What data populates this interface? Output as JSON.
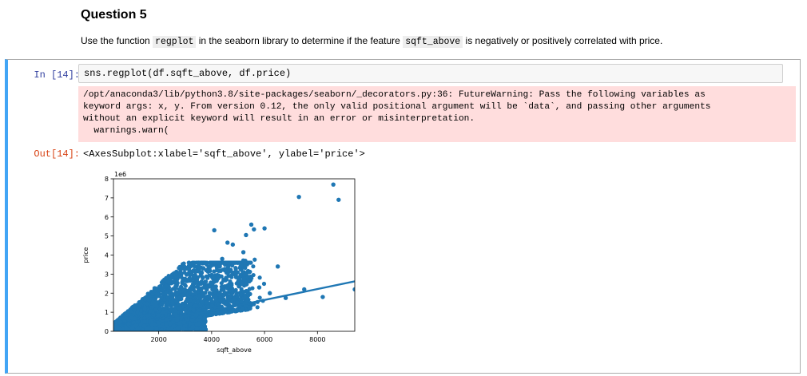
{
  "markdown": {
    "title": "Question 5",
    "text_before_1": "Use the function ",
    "code_1": "regplot",
    "text_between": " in the seaborn library to determine if the feature ",
    "code_2": "sqft_above",
    "text_after": " is negatively or positively correlated with price."
  },
  "cell": {
    "in_prompt": "In [14]:",
    "input_code": "sns.regplot(df.sqft_above, df.price)",
    "stderr_lines": [
      "/opt/anaconda3/lib/python3.8/site-packages/seaborn/_decorators.py:36: FutureWarning: Pass the following variables as",
      "keyword args: x, y. From version 0.12, the only valid positional argument will be `data`, and passing other arguments",
      "without an explicit keyword will result in an error or misinterpretation.",
      "  warnings.warn("
    ],
    "out_prompt": "Out[14]:",
    "output_repr": "<AxesSubplot:xlabel='sqft_above', ylabel='price'>"
  },
  "colors": {
    "point": "#1f77b4",
    "line": "#1f77b4",
    "in_prompt": "#303f9f",
    "out_prompt": "#d84315",
    "stderr_bg": "#ffdddd",
    "cell_accent": "#42a5f5"
  },
  "chart_data": {
    "type": "scatter",
    "xlabel": "sqft_above",
    "ylabel": "price",
    "y_offset_label": "1e6",
    "xlim": [
      290,
      9410
    ],
    "ylim": [
      0,
      8
    ],
    "x_ticks": [
      2000,
      4000,
      6000,
      8000
    ],
    "x_tick_labels": [
      "2000",
      "4000",
      "6000",
      "8000"
    ],
    "y_ticks": [
      0,
      1,
      2,
      3,
      4,
      5,
      6,
      7,
      8
    ],
    "y_tick_labels": [
      "0",
      "1",
      "2",
      "3",
      "4",
      "5",
      "6",
      "7",
      "8"
    ],
    "regression_line": {
      "x": [
        2100,
        9410
      ],
      "y": [
        0.53,
        2.62
      ]
    },
    "scatter_points": {
      "x": [
        8600,
        7300,
        8800,
        5500,
        5600,
        4100,
        6000,
        5300,
        4600,
        4800,
        5200,
        6500,
        5100,
        4200,
        3300,
        6200,
        6800,
        7500,
        9410,
        8200,
        5000,
        3800,
        3500,
        4400,
        5800
      ],
      "y": [
        7.7,
        7.05,
        6.9,
        5.6,
        5.35,
        5.3,
        5.4,
        5.05,
        4.65,
        4.55,
        4.15,
        3.4,
        2.95,
        3.2,
        3.55,
        2.0,
        1.75,
        2.2,
        2.2,
        1.8,
        2.6,
        3.2,
        3.6,
        3.8,
        2.3
      ]
    },
    "dense_cloud_note": "dense cloud of points from ~290 to ~5500 sqft_above"
  }
}
